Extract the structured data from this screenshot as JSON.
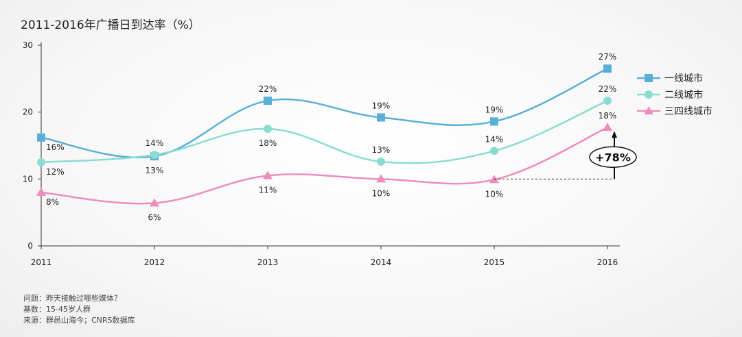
{
  "title": "2011-2016年广播日到达率（%）",
  "notes": {
    "question": "问题：昨天接触过哪些媒体？",
    "base": "基数：15-45岁人群",
    "source": "来源：群邑山海今；CNRS数据库"
  },
  "chart_data": {
    "type": "line",
    "title": "2011-2016年广播日到达率（%）",
    "x": [
      "2011",
      "2012",
      "2013",
      "2014",
      "2015",
      "2016"
    ],
    "ylim": [
      0,
      30
    ],
    "yticks": [
      0,
      10,
      20,
      30
    ],
    "grid": false,
    "legend_position": "right",
    "series": [
      {
        "name": "一线城市",
        "values": [
          16,
          13,
          22,
          19,
          19,
          27
        ],
        "plot_values": [
          16.2,
          13.4,
          21.7,
          19.2,
          18.6,
          26.5
        ],
        "labels": [
          "16%",
          "13%",
          "22%",
          "19%",
          "19%",
          "27%"
        ],
        "label_pos": [
          "below-right",
          "below",
          "above",
          "above",
          "above",
          "above"
        ],
        "color": "#5aafd8",
        "marker": "square"
      },
      {
        "name": "二线城市",
        "values": [
          12,
          14,
          18,
          13,
          14,
          22
        ],
        "plot_values": [
          12.5,
          13.6,
          17.5,
          12.6,
          14.2,
          21.7
        ],
        "labels": [
          "12%",
          "14%",
          "18%",
          "13%",
          "14%",
          "22%"
        ],
        "label_pos": [
          "below-right",
          "above",
          "below",
          "above",
          "above",
          "above"
        ],
        "color": "#8adcd2",
        "marker": "circle"
      },
      {
        "name": "三四线城市",
        "values": [
          8,
          6,
          11,
          10,
          10,
          18
        ],
        "plot_values": [
          8.0,
          6.4,
          10.5,
          10.0,
          9.9,
          17.7
        ],
        "labels": [
          "8%",
          "6%",
          "11%",
          "10%",
          "10%",
          "18%"
        ],
        "label_pos": [
          "below-right",
          "below",
          "below",
          "below",
          "below",
          "above"
        ],
        "color": "#ee8cbd",
        "marker": "triangle"
      }
    ],
    "annotation": {
      "text": "+78%",
      "from_value": 10,
      "to_value": 18
    }
  }
}
